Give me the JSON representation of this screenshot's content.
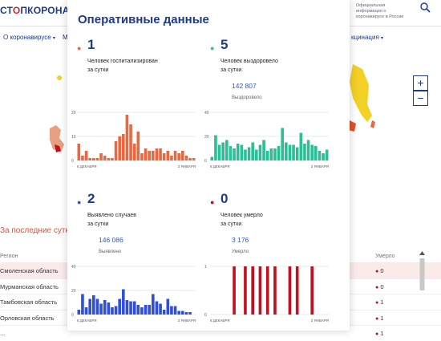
{
  "header": {
    "logo_left": "СТ",
    "logo_right": "ПКОРОНАВИ",
    "official_note": "Официальная информация о коронавирусе в России"
  },
  "nav": {
    "about": "О коронавирусе",
    "partial": "М",
    "vaccination": "кцинация"
  },
  "map": {
    "zoom_in": "+",
    "zoom_out": "−"
  },
  "table": {
    "heading": "За последние сутки",
    "col_region": "Регион",
    "col_deaths": "Умерло",
    "rows": [
      {
        "region": "Смоленская область",
        "deaths": "0"
      },
      {
        "region": "Мурманская область",
        "deaths": "0"
      },
      {
        "region": "Тамбовская область",
        "deaths": "1"
      },
      {
        "region": "Орловская область",
        "deaths": "1"
      },
      {
        "region": "...",
        "deaths": "1"
      }
    ]
  },
  "modal": {
    "title": "Оперативные данные",
    "stats": [
      {
        "value": "1",
        "label_line1": "Человек госпитализирован",
        "label_line2": "за сутки",
        "total": "",
        "total_label": "",
        "color": "#e8683f"
      },
      {
        "value": "5",
        "label_line1": "Человек выздоровело",
        "label_line2": "за сутки",
        "total": "142 807",
        "total_label": "Выздоровело",
        "color": "#2bbf97"
      },
      {
        "value": "2",
        "label_line1": "Выявлено случаев",
        "label_line2": "за сутки",
        "total": "146 086",
        "total_label": "Выявлено",
        "color": "#2f4fd9"
      },
      {
        "value": "0",
        "label_line1": "Человек умерло",
        "label_line2": "за сутки",
        "total": "3 176",
        "total_label": "Умерло",
        "color": "#c0101f"
      }
    ]
  },
  "chart_data": [
    {
      "type": "bar",
      "name": "hospitalized",
      "x_start": "6 ДЕКАБРЯ",
      "x_end": "2 ЯНВАРЯ",
      "yticks": [
        "20",
        "10",
        "0"
      ],
      "ylim": [
        0,
        20
      ],
      "values": [
        7,
        2,
        4,
        1,
        1,
        1,
        3,
        2,
        1,
        1,
        8,
        10,
        11,
        19,
        15,
        7,
        12,
        3,
        5,
        4,
        4,
        5,
        5,
        3,
        4,
        2,
        4,
        3,
        4,
        2,
        1,
        1
      ],
      "color": "#e8683f"
    },
    {
      "type": "bar",
      "name": "recovered",
      "x_start": "6 ДЕКАБРЯ",
      "x_end": "2 ЯНВАРЯ",
      "yticks": [
        "40",
        "20",
        "0"
      ],
      "ylim": [
        0,
        40
      ],
      "values": [
        3,
        21,
        13,
        15,
        17,
        12,
        10,
        14,
        13,
        9,
        11,
        15,
        9,
        13,
        17,
        8,
        10,
        10,
        12,
        27,
        15,
        13,
        13,
        11,
        23,
        14,
        17,
        13,
        12,
        8,
        6,
        9
      ],
      "color": "#2bbf97"
    },
    {
      "type": "bar",
      "name": "detected",
      "x_start": "6 ДЕКАБРЯ",
      "x_end": "2 ЯНВАРЯ",
      "yticks": [
        "40",
        "20",
        "0"
      ],
      "ylim": [
        0,
        40
      ],
      "values": [
        4,
        17,
        6,
        13,
        16,
        13,
        9,
        12,
        10,
        6,
        7,
        13,
        21,
        12,
        11,
        11,
        8,
        6,
        8,
        8,
        17,
        11,
        9,
        4,
        13,
        7,
        7,
        3,
        3,
        2,
        2,
        0
      ],
      "color": "#2f4fd9"
    },
    {
      "type": "bar",
      "name": "deaths",
      "x_start": "6 ДЕКАБРЯ",
      "x_end": "2 ЯНВАРЯ",
      "yticks": [
        "1",
        "0"
      ],
      "ylim": [
        0,
        1
      ],
      "values": [
        0,
        0,
        0,
        0,
        0,
        0,
        1,
        0,
        0,
        1,
        0,
        1,
        0,
        1,
        0,
        1,
        0,
        1,
        0,
        0,
        0,
        1,
        0,
        1,
        0,
        0,
        0,
        1,
        0,
        0,
        0,
        0
      ],
      "color": "#c0101f"
    }
  ]
}
